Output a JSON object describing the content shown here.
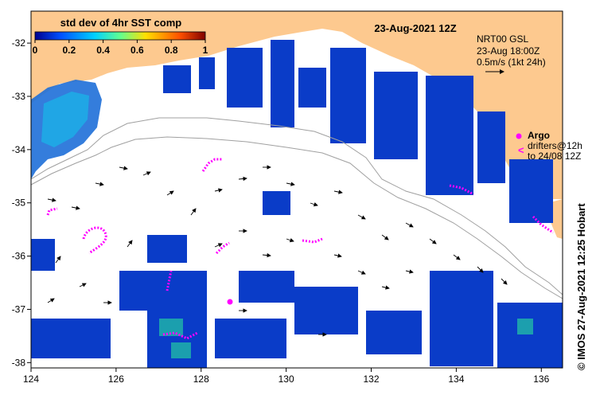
{
  "title": "23-Aug-2021 12Z",
  "colorbar": {
    "title": "std dev of 4hr SST comp",
    "ticks": [
      "0",
      "0.2",
      "0.4",
      "0.6",
      "0.8",
      "1"
    ]
  },
  "current_legend": {
    "line1": "NRT00 GSL",
    "line2": "23-Aug 18:00Z",
    "line3": "0.5m/s (1kt 24h)"
  },
  "argo_legend": {
    "argo_label": "Argo",
    "drifters_line1": "drifters@12h",
    "drifters_line2": "to 24/08 12Z"
  },
  "credit": "© IMOS 27-Aug-2021 12:25 Hobart",
  "axes": {
    "x_ticks": [
      {
        "value": 124,
        "label": "124"
      },
      {
        "value": 126,
        "label": "126"
      },
      {
        "value": 128,
        "label": "128"
      },
      {
        "value": 130,
        "label": "130"
      },
      {
        "value": 132,
        "label": "132"
      },
      {
        "value": 134,
        "label": "134"
      },
      {
        "value": 136,
        "label": "136"
      }
    ],
    "y_ticks": [
      {
        "value": -32,
        "label": "-32"
      },
      {
        "value": -33,
        "label": "-33"
      },
      {
        "value": -34,
        "label": "-34"
      },
      {
        "value": -35,
        "label": "-35"
      },
      {
        "value": -36,
        "label": "-36"
      },
      {
        "value": -37,
        "label": "-37"
      },
      {
        "value": -38,
        "label": "-38"
      }
    ],
    "lon_range": [
      124,
      136.5
    ],
    "lat_range": [
      -38.1,
      -31.4
    ]
  },
  "colors": {
    "land": "#fdc98f",
    "ocean": "#ffffff",
    "colorbar_stops": [
      "#00008f",
      "#0050ff",
      "#00d0ff",
      "#60ff90",
      "#ffe000",
      "#ff5000",
      "#800000"
    ],
    "argo": "#ff00ff",
    "isobath": "#a0a0a0"
  }
}
